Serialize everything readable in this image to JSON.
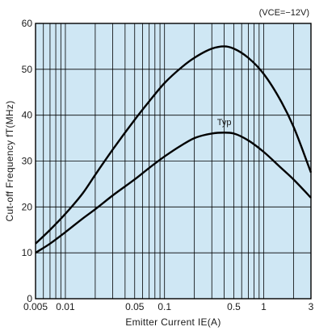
{
  "chart_data": {
    "type": "line",
    "xlabel": "Emitter Current IE(A)",
    "ylabel": "Cut-off Frequency fT(MHz)",
    "xscale": "log",
    "yscale": "linear",
    "xlim": [
      0.005,
      3
    ],
    "ylim": [
      0,
      60
    ],
    "grid": true,
    "colors": {
      "plot_background": "#cfe7f4",
      "grid": "#000000",
      "line": "#000000",
      "page": "#ffffff"
    },
    "x_ticks": [
      {
        "value": 0.005,
        "label": "0.005"
      },
      {
        "value": 0.01,
        "label": "0.01"
      },
      {
        "value": 0.05,
        "label": "0.05"
      },
      {
        "value": 0.1,
        "label": "0.1"
      },
      {
        "value": 0.5,
        "label": "0.5"
      },
      {
        "value": 1,
        "label": "1"
      },
      {
        "value": 3,
        "label": "3"
      }
    ],
    "y_ticks": [
      {
        "value": 0,
        "label": "0"
      },
      {
        "value": 10,
        "label": "10"
      },
      {
        "value": 20,
        "label": "20"
      },
      {
        "value": 30,
        "label": "30"
      },
      {
        "value": 40,
        "label": "40"
      },
      {
        "value": 50,
        "label": "50"
      },
      {
        "value": 60,
        "label": "60"
      }
    ],
    "condition_label": "(VCE=−12V)",
    "annotations": [
      {
        "text": "Typ",
        "x": 0.4,
        "y": 37.5
      }
    ],
    "series": [
      {
        "x": [
          0.005,
          0.007,
          0.01,
          0.015,
          0.02,
          0.03,
          0.05,
          0.07,
          0.1,
          0.15,
          0.2,
          0.3,
          0.4,
          0.5,
          0.7,
          1,
          1.5,
          2,
          3
        ],
        "y": [
          12,
          15,
          18.5,
          23,
          27,
          32.5,
          39,
          43,
          47,
          50.5,
          52.5,
          54.5,
          55,
          54.5,
          52.5,
          49,
          43,
          37.5,
          27.5
        ]
      },
      {
        "x": [
          0.005,
          0.007,
          0.01,
          0.015,
          0.02,
          0.03,
          0.05,
          0.07,
          0.1,
          0.15,
          0.2,
          0.3,
          0.4,
          0.5,
          0.7,
          1,
          1.5,
          2,
          3
        ],
        "y": [
          10,
          12,
          14.5,
          17.5,
          19.5,
          22.5,
          26,
          28.5,
          31,
          33.5,
          35,
          36,
          36.2,
          36,
          34.5,
          32,
          28.5,
          26,
          22
        ]
      }
    ]
  }
}
